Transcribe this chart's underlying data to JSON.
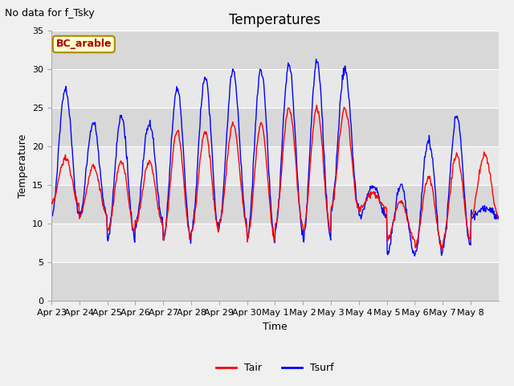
{
  "title": "Temperatures",
  "suptitle": "No data for f_Tsky",
  "xlabel": "Time",
  "ylabel": "Temperature",
  "ylim": [
    0,
    35
  ],
  "yticks": [
    0,
    5,
    10,
    15,
    20,
    25,
    30,
    35
  ],
  "legend_labels": [
    "Tair",
    "Tsurf"
  ],
  "legend_colors": [
    "red",
    "blue"
  ],
  "box_label": "BC_arable",
  "box_facecolor": "#ffffcc",
  "box_edgecolor": "#aa8800",
  "box_textcolor": "#aa0000",
  "figure_facecolor": "#f0f0f0",
  "axes_facecolor": "#e8e8e8",
  "band_color_light": "#e8e8e8",
  "band_color_dark": "#d8d8d8",
  "grid_color": "#ffffff",
  "tair_color": "red",
  "tsurf_color": "blue",
  "n_days": 16,
  "points_per_day": 48,
  "daily_min_tair": [
    12.5,
    11.0,
    9.0,
    10.0,
    8.0,
    9.0,
    10.0,
    8.0,
    10.0,
    9.0,
    12.0,
    12.0,
    8.0,
    7.0,
    8.0,
    11.0
  ],
  "daily_max_tair": [
    18.5,
    17.5,
    18.0,
    18.0,
    22.0,
    22.0,
    23.0,
    23.0,
    25.0,
    25.0,
    25.0,
    14.0,
    13.0,
    16.0,
    19.0,
    19.0
  ],
  "daily_min_tsurf": [
    11.0,
    11.0,
    8.0,
    10.0,
    8.0,
    9.0,
    10.0,
    8.0,
    9.0,
    8.0,
    12.0,
    11.0,
    6.0,
    6.0,
    7.0,
    11.0
  ],
  "daily_max_tsurf": [
    27.5,
    23.0,
    24.0,
    23.0,
    27.5,
    29.0,
    30.0,
    30.0,
    30.5,
    31.0,
    30.0,
    15.0,
    15.0,
    21.0,
    24.0,
    12.0
  ],
  "tick_labels": [
    "Apr 23",
    "Apr 24",
    "Apr 25",
    "Apr 26",
    "Apr 27",
    "Apr 28",
    "Apr 29",
    "Apr 30",
    "May 1",
    "May 2",
    "May 3",
    "May 4",
    "May 5",
    "May 6",
    "May 7",
    "May 8"
  ],
  "title_fontsize": 12,
  "label_fontsize": 9,
  "tick_fontsize": 8,
  "suptitle_fontsize": 9
}
